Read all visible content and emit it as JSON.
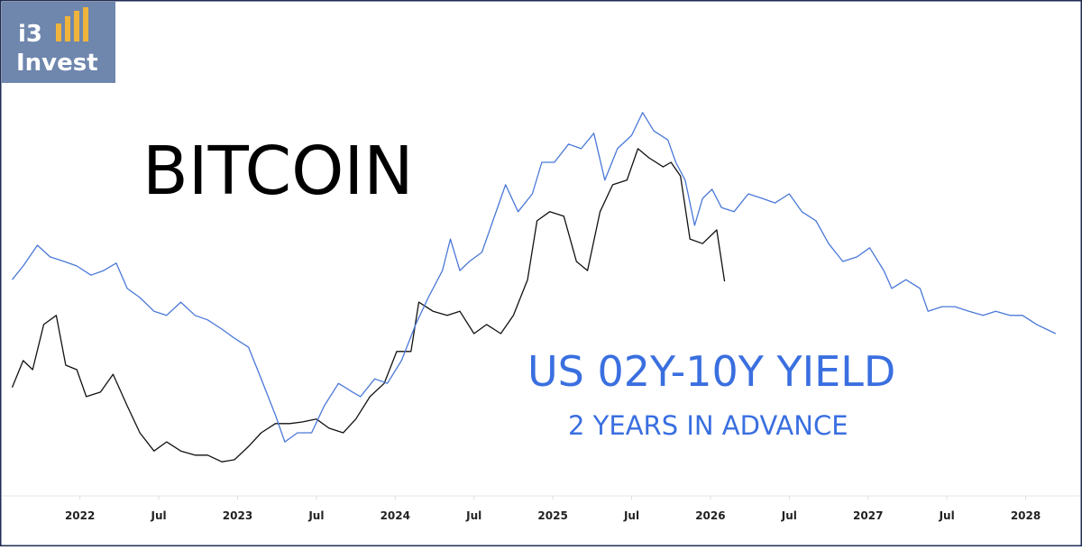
{
  "logo": {
    "line1": "i3",
    "line2": "Invest"
  },
  "chart_data": {
    "type": "line",
    "xlim": [
      2021.55,
      2028.22
    ],
    "ylim": [
      0,
      100
    ],
    "xticks": [
      {
        "value": 2022,
        "label": "2022"
      },
      {
        "value": 2022.5,
        "label": "Jul"
      },
      {
        "value": 2023,
        "label": "2023"
      },
      {
        "value": 2023.5,
        "label": "Jul"
      },
      {
        "value": 2024,
        "label": "2024"
      },
      {
        "value": 2024.5,
        "label": "Jul"
      },
      {
        "value": 2025,
        "label": "2025"
      },
      {
        "value": 2025.5,
        "label": "Jul"
      },
      {
        "value": 2026,
        "label": "2026"
      },
      {
        "value": 2026.5,
        "label": "Jul"
      },
      {
        "value": 2027,
        "label": "2027"
      },
      {
        "value": 2027.5,
        "label": "Jul"
      },
      {
        "value": 2028,
        "label": "2028"
      }
    ],
    "annotation": "2 YEARS IN ADVANCE",
    "series": [
      {
        "name": "BITCOIN",
        "color": "#111111",
        "x": [
          2021.57,
          2021.64,
          2021.7,
          2021.77,
          2021.85,
          2021.91,
          2021.98,
          2022.04,
          2022.13,
          2022.21,
          2022.3,
          2022.38,
          2022.47,
          2022.55,
          2022.64,
          2022.73,
          2022.81,
          2022.9,
          2022.98,
          2023.07,
          2023.15,
          2023.24,
          2023.33,
          2023.41,
          2023.5,
          2023.58,
          2023.67,
          2023.75,
          2023.84,
          2023.93,
          2024.01,
          2024.1,
          2024.15,
          2024.24,
          2024.33,
          2024.41,
          2024.5,
          2024.58,
          2024.67,
          2024.75,
          2024.84,
          2024.9,
          2024.98,
          2025.07,
          2025.15,
          2025.22,
          2025.3,
          2025.38,
          2025.47,
          2025.54,
          2025.61,
          2025.7,
          2025.75,
          2025.81,
          2025.87,
          2025.95,
          2026.04,
          2026.09
        ],
        "values": [
          28.3,
          34.8,
          32.6,
          43.5,
          45.7,
          33.7,
          32.6,
          26.1,
          27.2,
          31.5,
          23.9,
          17.4,
          13.0,
          15.2,
          13.0,
          12.0,
          12.0,
          10.4,
          10.9,
          14.1,
          17.4,
          19.6,
          19.6,
          20.0,
          20.7,
          18.5,
          17.4,
          20.7,
          26.1,
          29.3,
          37.0,
          37.0,
          48.9,
          46.7,
          45.7,
          46.7,
          41.3,
          43.5,
          41.3,
          45.7,
          54.3,
          68.5,
          70.7,
          69.6,
          58.7,
          56.5,
          70.7,
          77.2,
          78.3,
          85.9,
          83.7,
          81.5,
          82.6,
          79.3,
          64.1,
          63.0,
          66.3,
          53.9
        ]
      },
      {
        "name": "US 02Y-10Y YIELD",
        "color": "#4a78d8",
        "x": [
          2021.57,
          2021.64,
          2021.73,
          2021.81,
          2021.9,
          2021.98,
          2022.07,
          2022.15,
          2022.23,
          2022.3,
          2022.38,
          2022.47,
          2022.55,
          2022.64,
          2022.73,
          2022.81,
          2022.9,
          2022.98,
          2023.07,
          2023.15,
          2023.24,
          2023.3,
          2023.38,
          2023.47,
          2023.55,
          2023.64,
          2023.73,
          2023.78,
          2023.87,
          2023.95,
          2024.04,
          2024.13,
          2024.21,
          2024.3,
          2024.35,
          2024.41,
          2024.47,
          2024.55,
          2024.61,
          2024.7,
          2024.78,
          2024.87,
          2024.93,
          2025.01,
          2025.1,
          2025.18,
          2025.26,
          2025.33,
          2025.41,
          2025.5,
          2025.57,
          2025.64,
          2025.73,
          2025.78,
          2025.84,
          2025.9,
          2025.95,
          2026.01,
          2026.07,
          2026.15,
          2026.24,
          2026.33,
          2026.41,
          2026.5,
          2026.58,
          2026.67,
          2026.75,
          2026.84,
          2026.93,
          2027.01,
          2027.1,
          2027.15,
          2027.24,
          2027.33,
          2027.38,
          2027.47,
          2027.55,
          2027.64,
          2027.73,
          2027.81,
          2027.9,
          2027.98,
          2028.07,
          2028.13,
          2028.19
        ],
        "values": [
          54.3,
          57.6,
          62.6,
          59.8,
          58.7,
          57.6,
          55.4,
          56.5,
          58.3,
          52.2,
          50.0,
          46.7,
          45.7,
          48.9,
          45.7,
          44.6,
          42.4,
          40.2,
          38.0,
          30.4,
          21.7,
          15.2,
          17.4,
          17.4,
          23.9,
          29.3,
          27.2,
          26.1,
          30.4,
          29.3,
          34.8,
          43.5,
          50.0,
          56.5,
          64.1,
          56.5,
          58.7,
          60.9,
          67.4,
          77.2,
          70.7,
          75.0,
          82.6,
          82.6,
          87.0,
          85.9,
          89.6,
          78.3,
          85.9,
          89.1,
          94.6,
          90.2,
          88.0,
          82.6,
          78.3,
          67.4,
          73.9,
          76.1,
          71.7,
          70.7,
          75.0,
          73.9,
          72.8,
          75.0,
          70.7,
          68.5,
          63.0,
          58.7,
          59.8,
          62.0,
          56.5,
          52.2,
          54.3,
          52.2,
          46.7,
          47.8,
          47.8,
          46.7,
          45.7,
          46.7,
          45.7,
          45.7,
          43.5,
          42.4,
          41.3
        ]
      }
    ]
  }
}
